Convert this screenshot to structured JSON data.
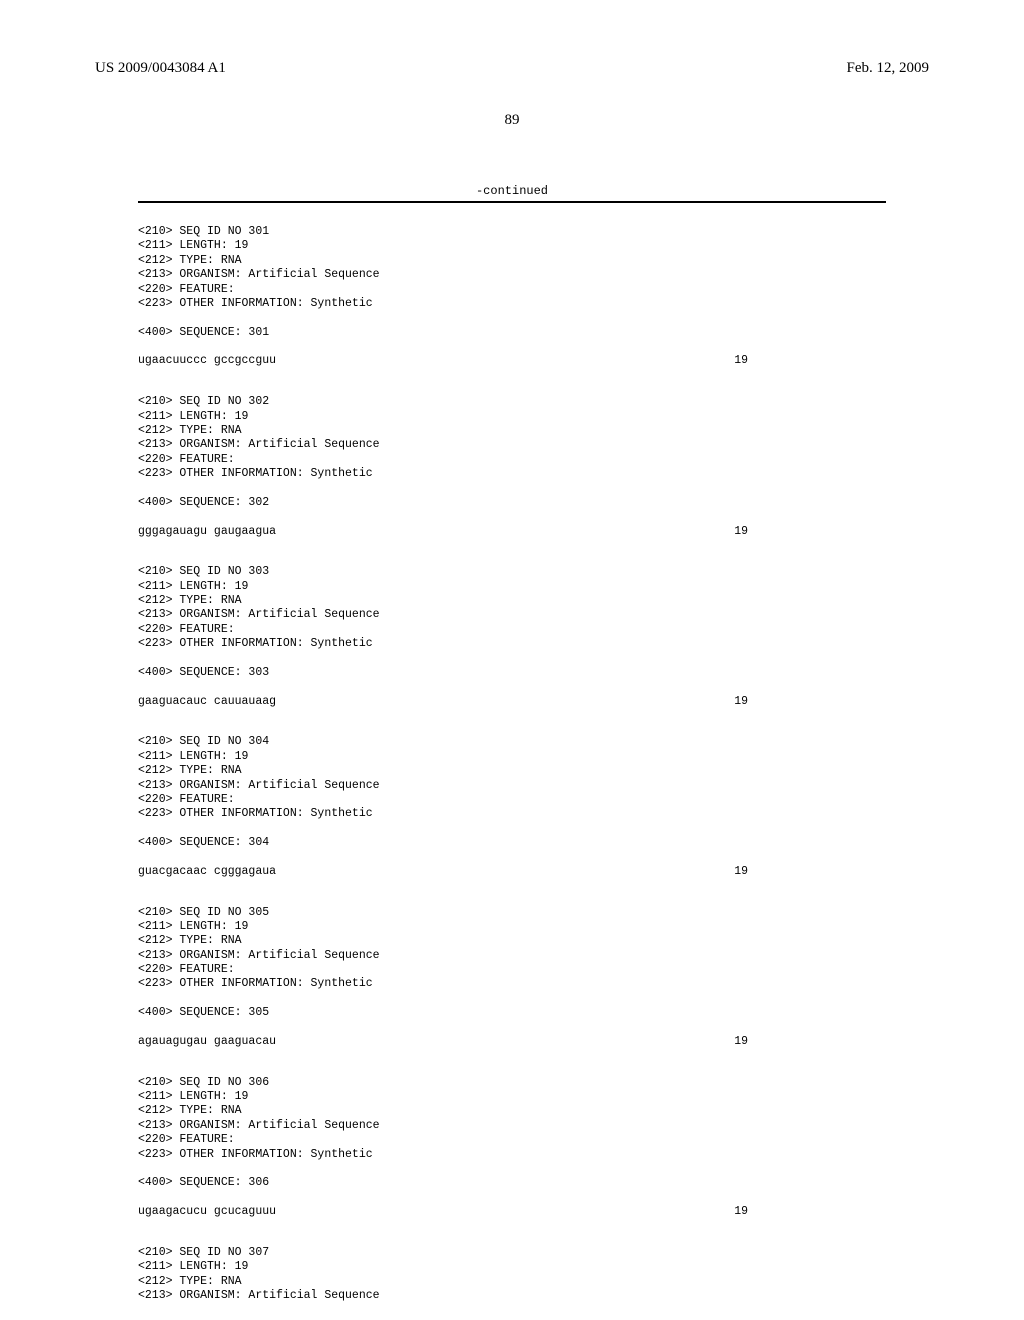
{
  "header": {
    "publication_number": "US 2009/0043084 A1",
    "publication_date": "Feb. 12, 2009"
  },
  "page_number": "89",
  "continued_label": "-continued",
  "sequences": [
    {
      "lines": [
        "<210> SEQ ID NO 301",
        "<211> LENGTH: 19",
        "<212> TYPE: RNA",
        "<213> ORGANISM: Artificial Sequence",
        "<220> FEATURE:",
        "<223> OTHER INFORMATION: Synthetic",
        "",
        "<400> SEQUENCE: 301"
      ],
      "sequence": "ugaacuuccc gccgccguu",
      "length": "19"
    },
    {
      "lines": [
        "<210> SEQ ID NO 302",
        "<211> LENGTH: 19",
        "<212> TYPE: RNA",
        "<213> ORGANISM: Artificial Sequence",
        "<220> FEATURE:",
        "<223> OTHER INFORMATION: Synthetic",
        "",
        "<400> SEQUENCE: 302"
      ],
      "sequence": "gggagauagu gaugaagua",
      "length": "19"
    },
    {
      "lines": [
        "<210> SEQ ID NO 303",
        "<211> LENGTH: 19",
        "<212> TYPE: RNA",
        "<213> ORGANISM: Artificial Sequence",
        "<220> FEATURE:",
        "<223> OTHER INFORMATION: Synthetic",
        "",
        "<400> SEQUENCE: 303"
      ],
      "sequence": "gaaguacauc cauuauaag",
      "length": "19"
    },
    {
      "lines": [
        "<210> SEQ ID NO 304",
        "<211> LENGTH: 19",
        "<212> TYPE: RNA",
        "<213> ORGANISM: Artificial Sequence",
        "<220> FEATURE:",
        "<223> OTHER INFORMATION: Synthetic",
        "",
        "<400> SEQUENCE: 304"
      ],
      "sequence": "guacgacaac cgggagaua",
      "length": "19"
    },
    {
      "lines": [
        "<210> SEQ ID NO 305",
        "<211> LENGTH: 19",
        "<212> TYPE: RNA",
        "<213> ORGANISM: Artificial Sequence",
        "<220> FEATURE:",
        "<223> OTHER INFORMATION: Synthetic",
        "",
        "<400> SEQUENCE: 305"
      ],
      "sequence": "agauagugau gaaguacau",
      "length": "19"
    },
    {
      "lines": [
        "<210> SEQ ID NO 306",
        "<211> LENGTH: 19",
        "<212> TYPE: RNA",
        "<213> ORGANISM: Artificial Sequence",
        "<220> FEATURE:",
        "<223> OTHER INFORMATION: Synthetic",
        "",
        "<400> SEQUENCE: 306"
      ],
      "sequence": "ugaagacucu gcucaguuu",
      "length": "19"
    },
    {
      "lines": [
        "<210> SEQ ID NO 307",
        "<211> LENGTH: 19",
        "<212> TYPE: RNA",
        "<213> ORGANISM: Artificial Sequence"
      ],
      "sequence": null,
      "length": null
    }
  ]
}
